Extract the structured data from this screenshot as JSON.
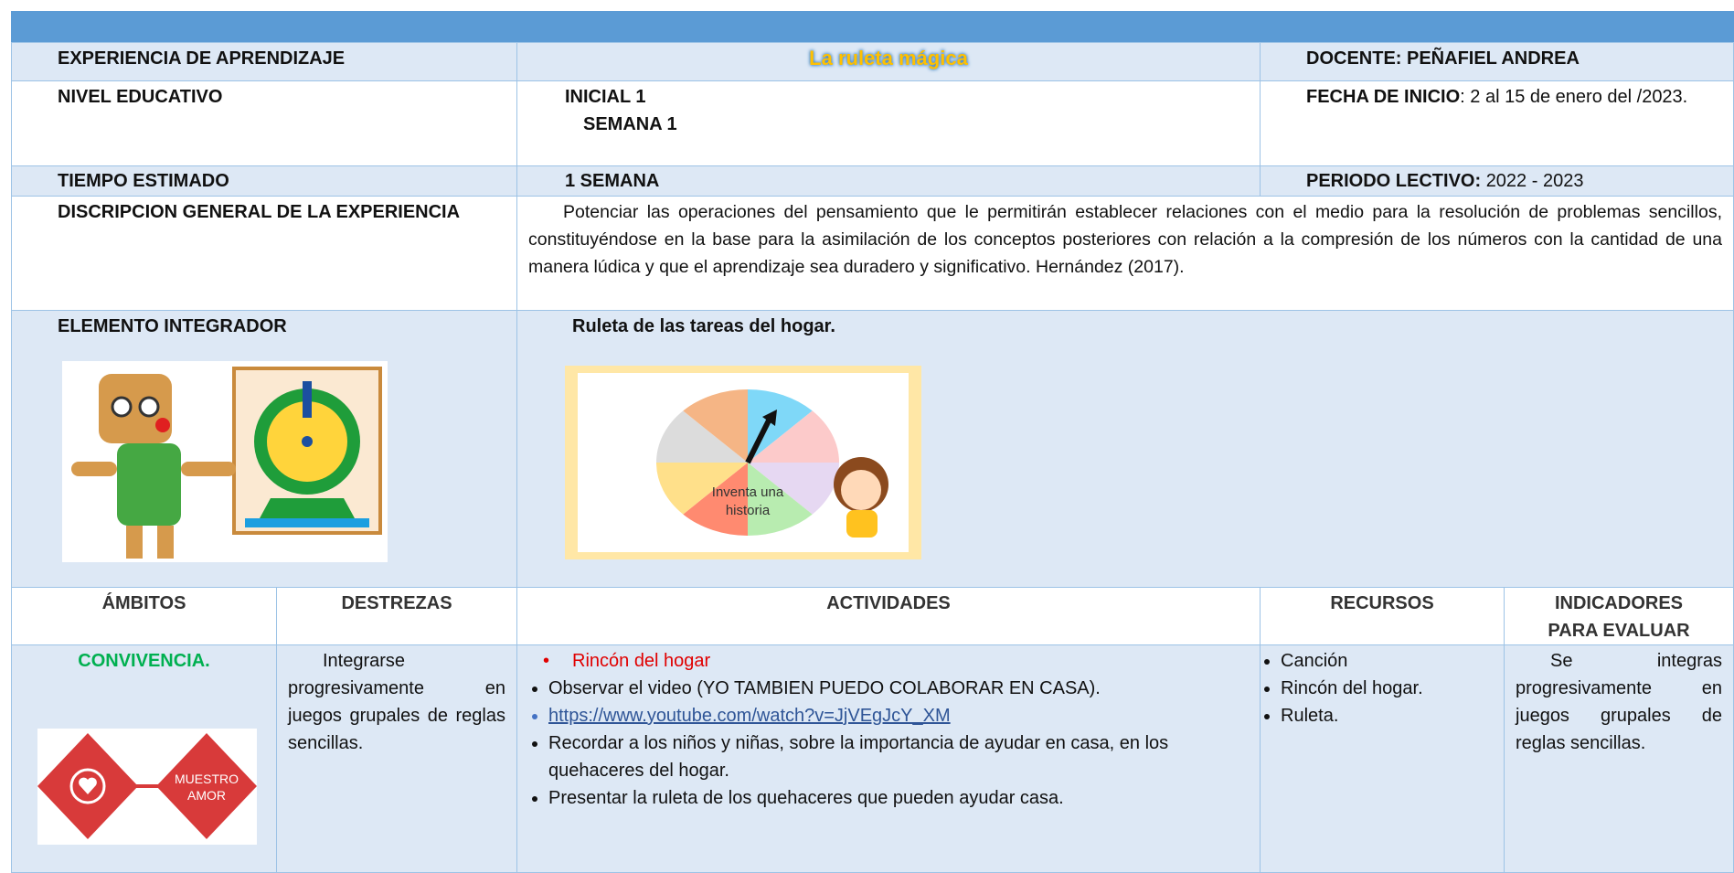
{
  "info": {
    "experiencia_label": "EXPERIENCIA DE APRENDIZAJE",
    "experiencia": "La ruleta mágica",
    "docente": "DOCENTE: PEÑAFIEL ANDREA",
    "nivel_label": "NIVEL EDUCATIVO",
    "nivel": [
      "INICIAL 1",
      "SEMANA 1"
    ],
    "fecha_label": "FECHA DE INICIO",
    "fecha": ": 2 al 15 de enero del /2023.",
    "tiempo_label": "TIEMPO ESTIMADO",
    "tiempo": "1 SEMANA",
    "periodo_label": "PERIODO LECTIVO:",
    "periodo": "2022 - 2023",
    "descripcion_label": "DISCRIPCION GENERAL DE LA EXPERIENCIA",
    "descripcion": "Potenciar las operaciones del pensamiento que le permitirán establecer relaciones con el medio para la resolución de problemas sencillos, constituyéndose en la base para la asimilación de los conceptos posteriores con relación a la compresión de los números con la cantidad de una manera lúdica y que el aprendizaje sea duradero y significativo. Hernández (2017).",
    "elemento_label": "ELEMENTO INTEGRADOR",
    "elemento": "Ruleta de las tareas del hogar.",
    "ruleta_texto": [
      "Inventa una",
      "historia"
    ]
  },
  "plan": {
    "headers": [
      "ÁMBITOS",
      "DESTREZAS",
      "ACTIVIDADES",
      "RECURSOS",
      "INDICADORES PARA EVALUAR"
    ],
    "ambito": "CONVIVENCIA.",
    "logo_texto": [
      "MUESTRO",
      "AMOR"
    ],
    "destreza": "Integrarse progresivamente en juegos grupales de reglas sencillas.",
    "actividades": [
      "Rincón del hogar",
      "Observar el video (YO TAMBIEN PUEDO COLABORAR EN CASA).",
      "https://www.youtube.com/watch?v=JjVEgJcY_XM",
      "Recordar a los niños y niñas, sobre la importancia de ayudar en casa, en los quehaceres del hogar.",
      "Presentar la ruleta de los quehaceres que pueden ayudar casa."
    ],
    "recursos": [
      "Canción",
      "Rincón del hogar.",
      "Ruleta."
    ],
    "indicador": "Se integras progresivamente en juegos grupales de reglas sencillas."
  }
}
